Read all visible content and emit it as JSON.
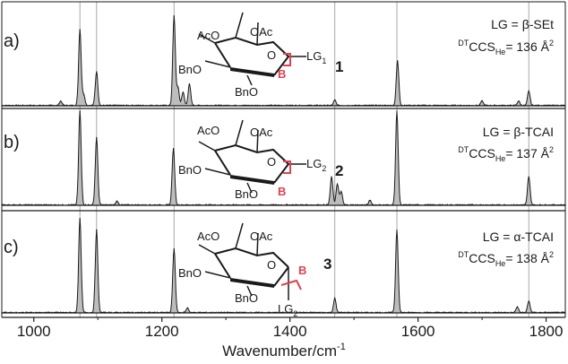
{
  "chart_data": [
    {
      "type": "area",
      "panel_label": "a)",
      "annotation": {
        "lg": "LG = β-SEt",
        "ccs_pre": "DT",
        "ccs_main": "CCS",
        "ccs_sub": "He",
        "ccs_value": "= 136 Å",
        "ccs_sup": "2"
      },
      "compound": "1",
      "leaving_group": {
        "main": "LG",
        "sub": "1"
      },
      "peaks": [
        {
          "x": 1042,
          "y": 0.05
        },
        {
          "x": 1072,
          "y": 0.85
        },
        {
          "x": 1078,
          "y": 0.12
        },
        {
          "x": 1098,
          "y": 0.38
        },
        {
          "x": 1219,
          "y": 1.0
        },
        {
          "x": 1225,
          "y": 0.2
        },
        {
          "x": 1233,
          "y": 0.15
        },
        {
          "x": 1243,
          "y": 0.24
        },
        {
          "x": 1470,
          "y": 0.06
        },
        {
          "x": 1568,
          "y": 0.5
        },
        {
          "x": 1700,
          "y": 0.05
        },
        {
          "x": 1757,
          "y": 0.05
        },
        {
          "x": 1773,
          "y": 0.16
        }
      ]
    },
    {
      "type": "area",
      "panel_label": "b)",
      "annotation": {
        "lg": "LG = β-TCAI",
        "ccs_pre": "DT",
        "ccs_main": "CCS",
        "ccs_sub": "He",
        "ccs_value": "= 137 Å",
        "ccs_sup": "2"
      },
      "compound": "2",
      "leaving_group": {
        "main": "LG",
        "sub": "2"
      },
      "peaks": [
        {
          "x": 1072,
          "y": 1.0
        },
        {
          "x": 1098,
          "y": 0.72
        },
        {
          "x": 1130,
          "y": 0.04
        },
        {
          "x": 1218,
          "y": 0.6
        },
        {
          "x": 1465,
          "y": 0.3
        },
        {
          "x": 1474,
          "y": 0.22
        },
        {
          "x": 1480,
          "y": 0.14
        },
        {
          "x": 1525,
          "y": 0.05
        },
        {
          "x": 1567,
          "y": 1.0
        },
        {
          "x": 1773,
          "y": 0.3
        }
      ]
    },
    {
      "type": "area",
      "panel_label": "c)",
      "annotation": {
        "lg": "LG = α-TCAI",
        "ccs_pre": "DT",
        "ccs_main": "CCS",
        "ccs_sub": "He",
        "ccs_value": "= 138 Å",
        "ccs_sup": "2"
      },
      "compound": "3",
      "leaving_group": {
        "main": "LG",
        "sub": "2"
      },
      "peaks": [
        {
          "x": 1072,
          "y": 1.0
        },
        {
          "x": 1098,
          "y": 0.88
        },
        {
          "x": 1219,
          "y": 0.68
        },
        {
          "x": 1240,
          "y": 0.05
        },
        {
          "x": 1470,
          "y": 0.15
        },
        {
          "x": 1567,
          "y": 0.88
        },
        {
          "x": 1755,
          "y": 0.06
        },
        {
          "x": 1773,
          "y": 0.12
        }
      ]
    }
  ],
  "x_axis": {
    "label": "Wavenumber/cm",
    "label_sup": "-1",
    "ticks": [
      1000,
      1200,
      1400,
      1600,
      1800
    ],
    "xlim": [
      950,
      1830
    ]
  },
  "reference_lines": [
    1072,
    1098,
    1219,
    1470,
    1567,
    1773
  ],
  "structure_labels": {
    "aco": "AcO",
    "oac": "OAc",
    "bno_left": "BnO",
    "bno_bottom": "BnO",
    "ring_o": "O",
    "bond_label": "B"
  },
  "colors": {
    "fill": "#bdbdbd",
    "line": "#1a1a1a",
    "ref": "#a8a8a8",
    "accent": "#e0424f"
  }
}
